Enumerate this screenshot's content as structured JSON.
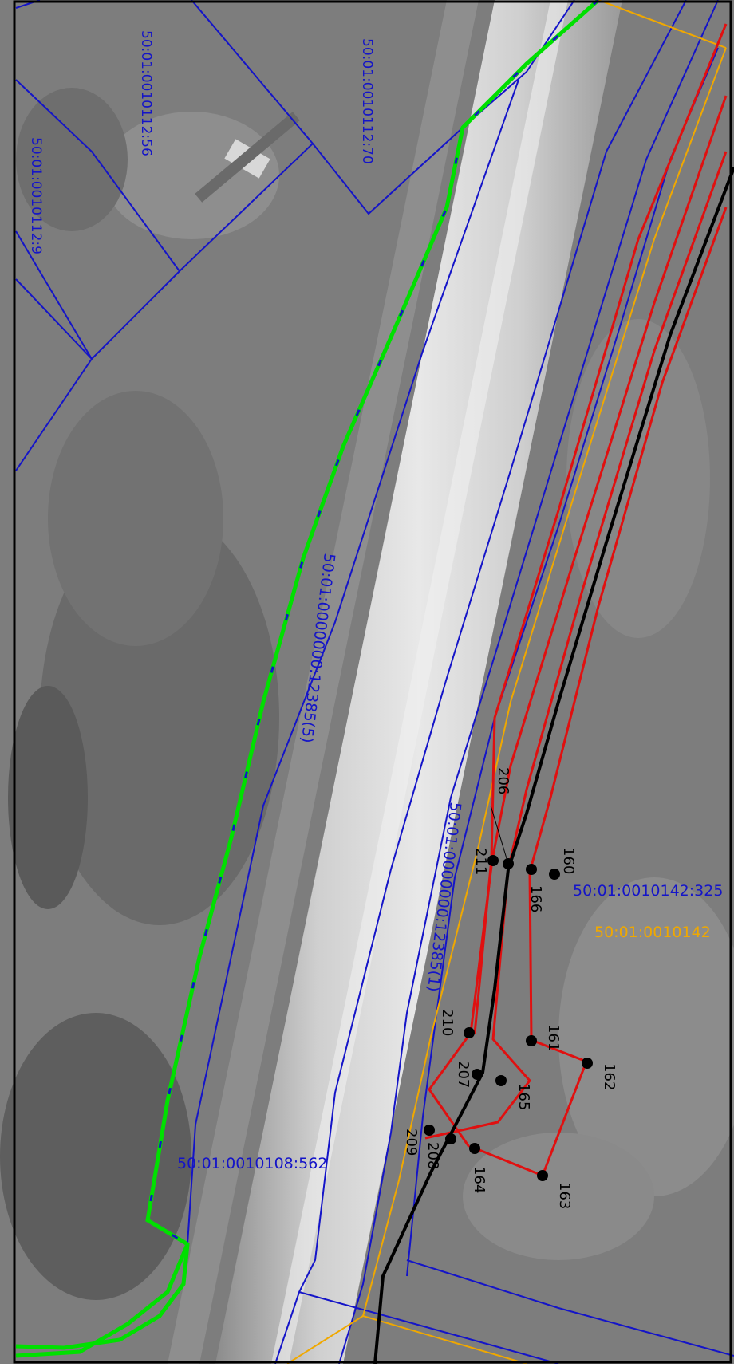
{
  "map": {
    "colors": {
      "parcel_boundary": "#1414c8",
      "quarter_boundary": "#f0a800",
      "red_boundary": "#e01010",
      "green_boundary": "#00e000",
      "axis_line": "#000000",
      "point_label": "#000000"
    },
    "parcels": [
      {
        "label": "50:01:0010112:56",
        "color": "#1414c8"
      },
      {
        "label": "50:01:0010112:70",
        "color": "#1414c8"
      },
      {
        "label": "50:01:0010112:9",
        "color": "#1414c8"
      },
      {
        "label": "50:01:0000000:12385(5)",
        "color": "#1414c8"
      },
      {
        "label": "50:01:0000000:12385(1)",
        "color": "#1414c8"
      },
      {
        "label": "50:01:0010142:325",
        "color": "#1414c8"
      },
      {
        "label": "50:01:0010142",
        "color": "#f0a800"
      },
      {
        "label": "50:01:0010108:562",
        "color": "#1414c8"
      }
    ],
    "points": [
      "160",
      "161",
      "162",
      "163",
      "164",
      "165",
      "166",
      "206",
      "207",
      "208",
      "209",
      "210",
      "211"
    ]
  }
}
